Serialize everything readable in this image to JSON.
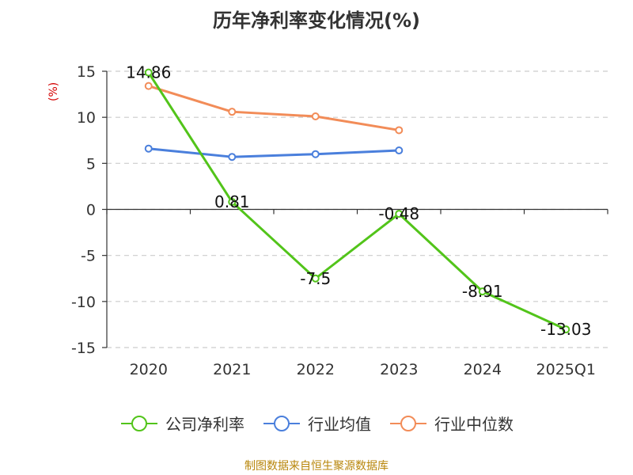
{
  "chart_data": {
    "type": "line",
    "title": "历年净利率变化情况(%)",
    "ylabel": "(%)",
    "xlabel": "",
    "categories": [
      "2020",
      "2021",
      "2022",
      "2023",
      "2024",
      "2025Q1"
    ],
    "ylim": [
      -15,
      15
    ],
    "yticks": [
      15,
      10,
      5,
      0,
      -5,
      -10,
      -15
    ],
    "grid": true,
    "legend_position": "bottom",
    "series": [
      {
        "name": "公司净利率",
        "color": "#52c41a",
        "values": [
          14.86,
          0.81,
          -7.5,
          -0.48,
          -8.91,
          -13.03
        ],
        "labels": [
          "14.86",
          "0.81",
          "-7.5",
          "-0.48",
          "-8.91",
          "-13.03"
        ]
      },
      {
        "name": "行业均值",
        "color": "#4a7fdc",
        "values": [
          6.6,
          5.7,
          6.0,
          6.4,
          null,
          null
        ]
      },
      {
        "name": "行业中位数",
        "color": "#f28c58",
        "values": [
          13.4,
          10.6,
          10.1,
          8.6,
          null,
          null
        ]
      }
    ]
  },
  "source": "制图数据来自恒生聚源数据库"
}
